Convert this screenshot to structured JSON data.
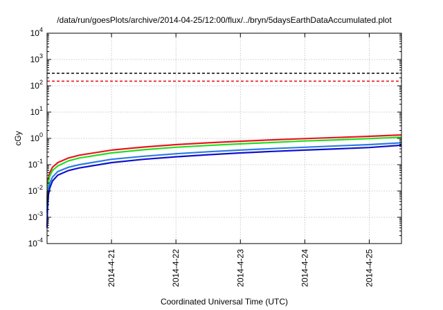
{
  "chart_data": {
    "type": "line",
    "title": "/data/run/goesPlots/archive/2014-04-25/12:00/flux/../bryn/5daysEarthDataAccumulated.plot",
    "xlabel": "Coordinated Universal Time (UTC)",
    "ylabel": "cGy",
    "y_scale": "log",
    "ylim": [
      0.0001,
      10000
    ],
    "xlim": [
      "2014-04-20 00:00",
      "2014-04-25 12:00"
    ],
    "y_ticks": [
      {
        "base": "10",
        "exp": "-4"
      },
      {
        "base": "10",
        "exp": "-3"
      },
      {
        "base": "10",
        "exp": "-2"
      },
      {
        "base": "10",
        "exp": "-1"
      },
      {
        "base": "10",
        "exp": "0"
      },
      {
        "base": "10",
        "exp": "1"
      },
      {
        "base": "10",
        "exp": "2"
      },
      {
        "base": "10",
        "exp": "3"
      },
      {
        "base": "10",
        "exp": "4"
      }
    ],
    "x_ticks": [
      "2014-4-21",
      "2014-4-22",
      "2014-4-23",
      "2014-4-24",
      "2014-4-25"
    ],
    "grid": true,
    "thresholds": [
      {
        "value": 300,
        "color": "#000000",
        "style": "dashed"
      },
      {
        "value": 150,
        "color": "#e8161c",
        "style": "dashed"
      }
    ],
    "series": [
      {
        "color": "#e8161c",
        "x": [
          "2014-04-20 00:00",
          "2014-04-20 00:10",
          "2014-04-20 00:30",
          "2014-04-20 01:00",
          "2014-04-20 02:00",
          "2014-04-20 04:00",
          "2014-04-20 08:00",
          "2014-04-20 12:00",
          "2014-04-21 00:00",
          "2014-04-21 12:00",
          "2014-04-22 00:00",
          "2014-04-22 12:00",
          "2014-04-23 00:00",
          "2014-04-23 12:00",
          "2014-04-24 00:00",
          "2014-04-24 12:00",
          "2014-04-25 00:00",
          "2014-04-25 12:00"
        ],
        "y": [
          0.004,
          0.012,
          0.03,
          0.05,
          0.08,
          0.12,
          0.18,
          0.23,
          0.36,
          0.47,
          0.58,
          0.68,
          0.78,
          0.88,
          0.98,
          1.08,
          1.2,
          1.35
        ]
      },
      {
        "color": "#22dd22",
        "x": [
          "2014-04-20 00:00",
          "2014-04-20 00:10",
          "2014-04-20 00:30",
          "2014-04-20 01:00",
          "2014-04-20 02:00",
          "2014-04-20 04:00",
          "2014-04-20 08:00",
          "2014-04-20 12:00",
          "2014-04-21 00:00",
          "2014-04-21 12:00",
          "2014-04-22 00:00",
          "2014-04-22 12:00",
          "2014-04-23 00:00",
          "2014-04-23 12:00",
          "2014-04-24 00:00",
          "2014-04-24 12:00",
          "2014-04-25 00:00",
          "2014-04-25 12:00"
        ],
        "y": [
          0.003,
          0.009,
          0.022,
          0.037,
          0.06,
          0.09,
          0.14,
          0.18,
          0.28,
          0.37,
          0.46,
          0.54,
          0.62,
          0.7,
          0.8,
          0.88,
          0.98,
          1.1
        ]
      },
      {
        "color": "#2a7be4",
        "x": [
          "2014-04-20 00:00",
          "2014-04-20 00:10",
          "2014-04-20 00:30",
          "2014-04-20 01:00",
          "2014-04-20 02:00",
          "2014-04-20 04:00",
          "2014-04-20 08:00",
          "2014-04-20 12:00",
          "2014-04-21 00:00",
          "2014-04-21 12:00",
          "2014-04-22 00:00",
          "2014-04-22 12:00",
          "2014-04-23 00:00",
          "2014-04-23 12:00",
          "2014-04-24 00:00",
          "2014-04-24 12:00",
          "2014-04-25 00:00",
          "2014-04-25 12:00"
        ],
        "y": [
          0.0015,
          0.005,
          0.012,
          0.02,
          0.034,
          0.055,
          0.08,
          0.1,
          0.16,
          0.21,
          0.26,
          0.31,
          0.36,
          0.41,
          0.46,
          0.52,
          0.58,
          0.68
        ]
      },
      {
        "color": "#1010cc",
        "x": [
          "2014-04-20 00:00",
          "2014-04-20 00:10",
          "2014-04-20 00:30",
          "2014-04-20 01:00",
          "2014-04-20 02:00",
          "2014-04-20 04:00",
          "2014-04-20 08:00",
          "2014-04-20 12:00",
          "2014-04-21 00:00",
          "2014-04-21 12:00",
          "2014-04-22 00:00",
          "2014-04-22 12:00",
          "2014-04-23 00:00",
          "2014-04-23 12:00",
          "2014-04-24 00:00",
          "2014-04-24 12:00",
          "2014-04-25 00:00",
          "2014-04-25 12:00"
        ],
        "y": [
          0.0004,
          0.002,
          0.007,
          0.013,
          0.024,
          0.04,
          0.06,
          0.075,
          0.12,
          0.16,
          0.2,
          0.24,
          0.28,
          0.32,
          0.36,
          0.4,
          0.45,
          0.55
        ]
      }
    ]
  }
}
